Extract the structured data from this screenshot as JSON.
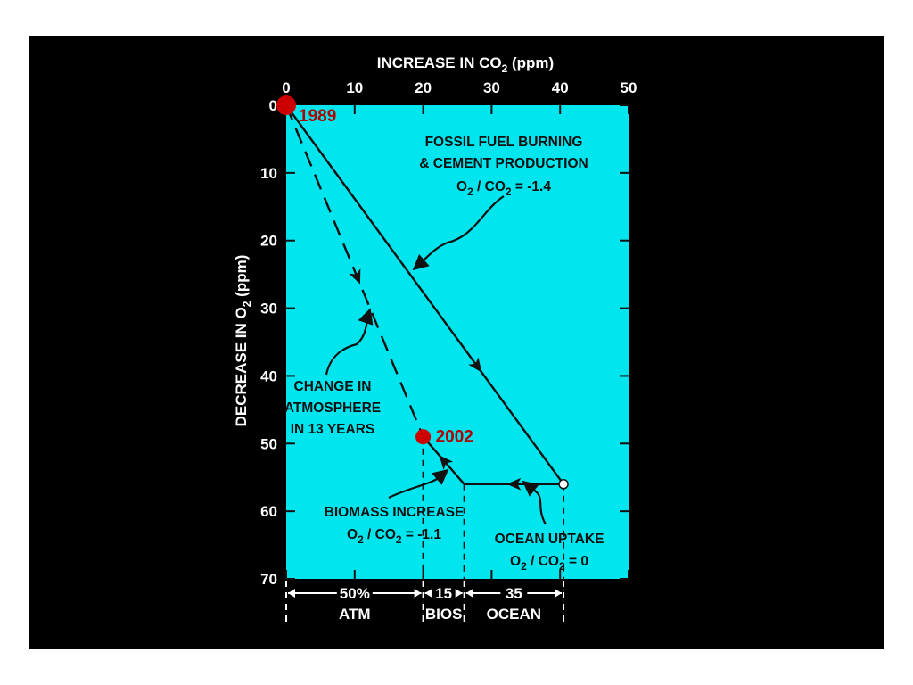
{
  "colors": {
    "background": "#000000",
    "plot_fill": "#00e5ee",
    "ink": "#111111",
    "axis_text": "#ffffff",
    "point": "#cc0000",
    "point_label": "#b00000"
  },
  "chart_data": {
    "type": "line",
    "xlabel": {
      "main": "INCREASE IN CO",
      "sub": "2",
      "tail": " (ppm)"
    },
    "ylabel": {
      "main": "DECREASE IN O",
      "sub": "2",
      "tail": " (ppm)"
    },
    "xlim": [
      0,
      50
    ],
    "ylim": [
      0,
      70
    ],
    "y_inverted": true,
    "x_axis_position": "top",
    "x_ticks": [
      "0",
      "10",
      "20",
      "30",
      "40",
      "50"
    ],
    "y_ticks": [
      "0",
      "10",
      "20",
      "30",
      "40",
      "50",
      "60",
      "70"
    ],
    "points": [
      {
        "label": "1989",
        "x": 0,
        "y": 0
      },
      {
        "label": "2002",
        "x": 20,
        "y": 49
      }
    ],
    "series": [
      {
        "style": "solid",
        "points": [
          [
            0,
            0
          ],
          [
            40.5,
            56
          ]
        ]
      },
      {
        "style": "solid",
        "points": [
          [
            40.5,
            56
          ],
          [
            26,
            56
          ]
        ]
      },
      {
        "style": "solid",
        "points": [
          [
            26,
            56
          ],
          [
            20,
            49
          ]
        ]
      },
      {
        "style": "dashed",
        "points": [
          [
            0,
            0
          ],
          [
            20,
            49
          ]
        ]
      }
    ],
    "annotations": {
      "fossil": [
        "FOSSIL FUEL BURNING",
        "& CEMENT PRODUCTION"
      ],
      "fossil_ratio": {
        "a": "O",
        "b": "2",
        "c": " / CO",
        "d": "2",
        "e": " = -1.4"
      },
      "atmos": [
        "CHANGE IN",
        "ATMOSPHERE",
        "IN 13 YEARS"
      ],
      "biomass": "BIOMASS INCREASE",
      "biomass_ratio": {
        "a": "O",
        "b": "2",
        "c": " / CO",
        "d": "2",
        "e": " = -1.1"
      },
      "ocean": "OCEAN UPTAKE",
      "ocean_ratio": {
        "a": "O",
        "b": "2",
        "c": " / CO",
        "d": "2",
        "e": " = 0"
      }
    },
    "budget": [
      {
        "value": "50%",
        "name": "ATM"
      },
      {
        "value": "15",
        "name": "BIOS"
      },
      {
        "value": "35",
        "name": "OCEAN"
      }
    ]
  }
}
